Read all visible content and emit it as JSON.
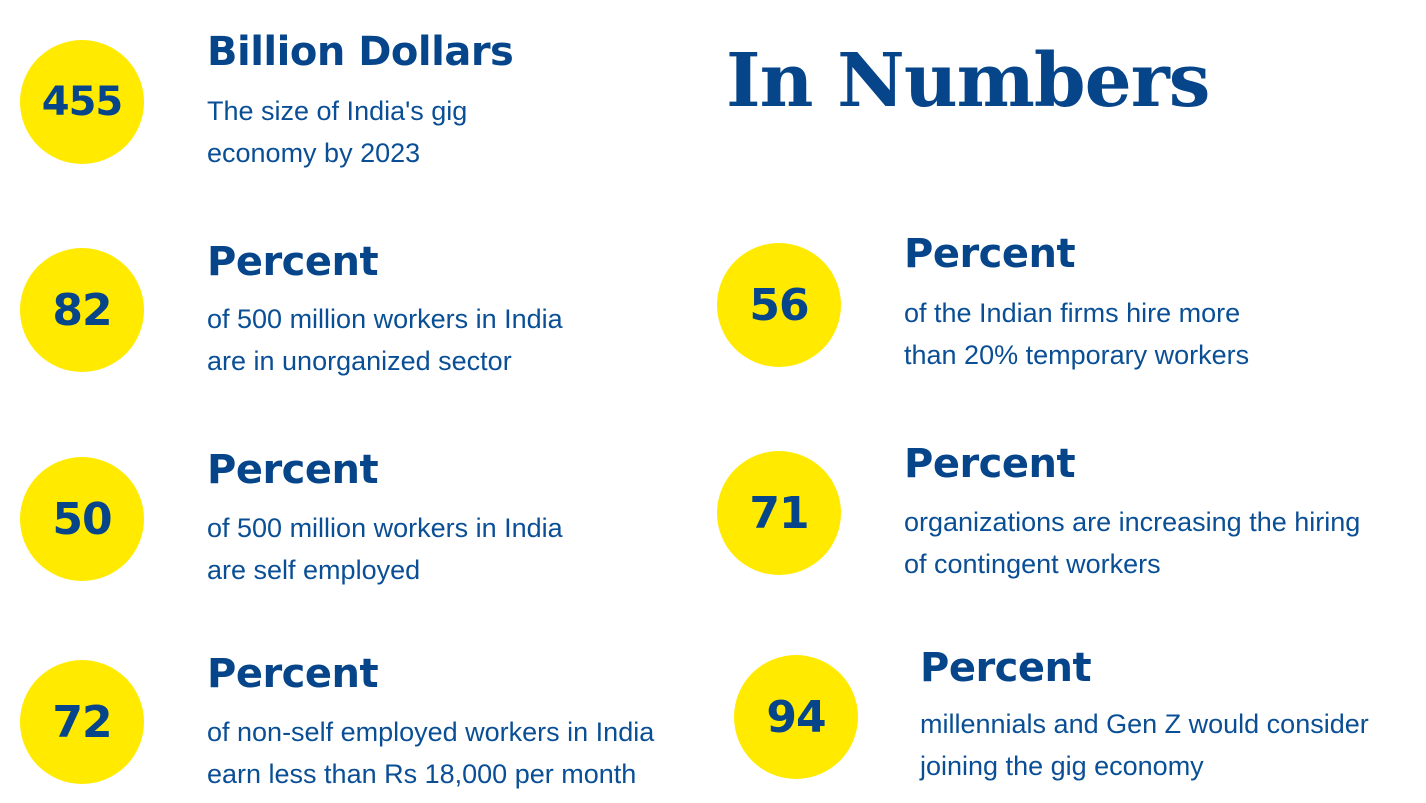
{
  "title": "In Numbers",
  "colors": {
    "circle": "#ffea00",
    "text": "#06458a"
  },
  "stats": [
    {
      "number": "455",
      "heading": "Billion Dollars",
      "lines": [
        "The size of India's gig",
        "economy by 2023"
      ]
    },
    {
      "number": "82",
      "heading": "Percent",
      "lines": [
        "of 500 million workers in India",
        "are in unorganized sector"
      ]
    },
    {
      "number": "50",
      "heading": "Percent",
      "lines": [
        "of 500 million workers in India",
        "are self employed"
      ]
    },
    {
      "number": "72",
      "heading": "Percent",
      "lines": [
        "of non-self employed workers in India",
        "earn less than Rs 18,000 per month"
      ]
    },
    {
      "number": "56",
      "heading": "Percent",
      "lines": [
        "of the Indian firms hire more",
        "than 20% temporary workers"
      ]
    },
    {
      "number": "71",
      "heading": "Percent",
      "lines": [
        "organizations are increasing the hiring",
        "of contingent workers"
      ]
    },
    {
      "number": "94",
      "heading": "Percent",
      "lines": [
        "millennials and Gen Z would consider",
        "joining the gig economy"
      ]
    }
  ]
}
